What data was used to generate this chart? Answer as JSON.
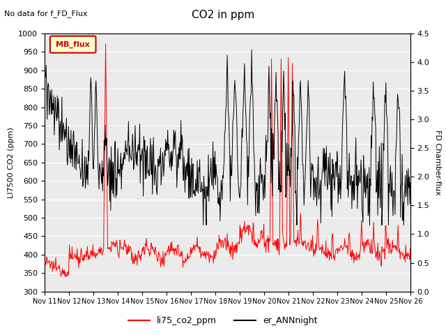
{
  "title": "CO2 in ppm",
  "subtitle": "No data for f_FD_Flux",
  "ylabel_left": "LI7500 CO2 (ppm)",
  "ylabel_right": "FD Chamber-flux",
  "ylim_left": [
    300,
    1000
  ],
  "ylim_right": [
    0.0,
    4.5
  ],
  "yticks_left": [
    300,
    350,
    400,
    450,
    500,
    550,
    600,
    650,
    700,
    750,
    800,
    850,
    900,
    950,
    1000
  ],
  "yticks_right": [
    0.0,
    0.5,
    1.0,
    1.5,
    2.0,
    2.5,
    3.0,
    3.5,
    4.0,
    4.5
  ],
  "xtick_labels": [
    "Nov 11",
    "Nov 12",
    "Nov 13",
    "Nov 14",
    "Nov 15",
    "Nov 16",
    "Nov 17",
    "Nov 18",
    "Nov 19",
    "Nov 20",
    "Nov 21",
    "Nov 22",
    "Nov 23",
    "Nov 24",
    "Nov 25",
    "Nov 26"
  ],
  "legend_label_red": "li75_co2_ppm",
  "legend_label_black": "er_ANNnight",
  "legend_box_label": "MB_flux",
  "line_color_red": "#ff0000",
  "line_color_black": "#000000",
  "background_color": "#ffffff",
  "plot_bg_color": "#ebebeb"
}
